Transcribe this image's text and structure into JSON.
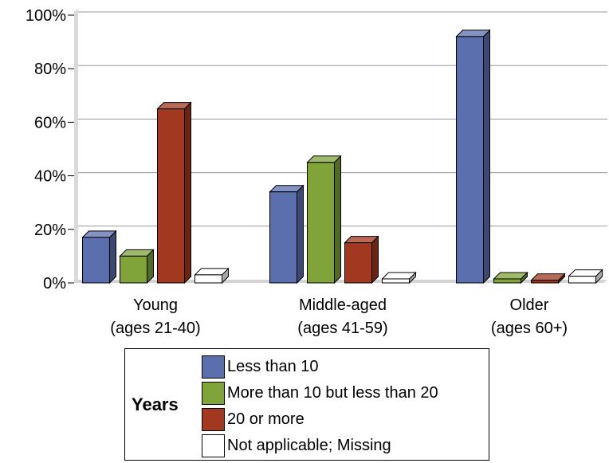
{
  "chart_data": {
    "type": "bar",
    "title": "",
    "xlabel": "",
    "ylabel": "",
    "ylim": [
      0,
      100
    ],
    "y_ticks": [
      0,
      20,
      40,
      60,
      80,
      100
    ],
    "y_tick_labels": [
      "0%",
      "20%",
      "40%",
      "60%",
      "80%",
      "100%"
    ],
    "grid": "horizontal",
    "style": "3d",
    "categories": [
      [
        "Young",
        "(ages 21-40)"
      ],
      [
        "Middle-aged",
        "(ages 41-59)"
      ],
      [
        "Older",
        "(ages 60+)"
      ]
    ],
    "legend_title": "Years",
    "legend_position": "bottom",
    "series": [
      {
        "name": "Less than 10",
        "color": "#5b6fae",
        "values": [
          17,
          34,
          92
        ]
      },
      {
        "name": "More than 10 but less than 20",
        "color": "#80a33a",
        "values": [
          10,
          45,
          1.5
        ]
      },
      {
        "name": "20 or more",
        "color": "#a1381f",
        "values": [
          65,
          15,
          1
        ]
      },
      {
        "name": "Not applicable; Missing",
        "color": "#ffffff",
        "values": [
          3,
          1.5,
          2.5
        ]
      }
    ]
  }
}
